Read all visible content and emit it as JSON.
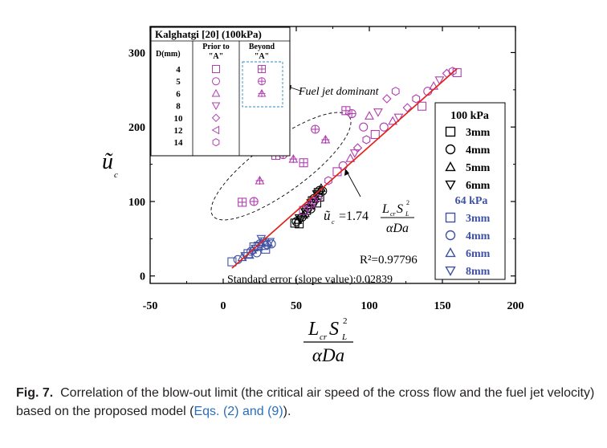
{
  "chart_data": {
    "type": "scatter",
    "x_axis": {
      "ticks": [
        "-50",
        "0",
        "50",
        "100",
        "150",
        "200"
      ],
      "range": [
        -50,
        200
      ],
      "label_main": "L",
      "label_sub1": "cr",
      "label_s": "S",
      "label_sub2": "L",
      "label_sup": "2",
      "label_den": "αDa"
    },
    "y_axis": {
      "ticks": [
        "0",
        "100",
        "200",
        "300"
      ],
      "range": [
        -10,
        335
      ],
      "label": "ũ",
      "label_sub": "c"
    },
    "grid": false,
    "inset_table": {
      "title": "Kalghatgi [20] (100kPa)",
      "col_d": "D(mm)",
      "col_prior_1": "Prior to",
      "col_prior_2": "\"A\"",
      "col_beyond_1": "Beyond",
      "col_beyond_2": "\"A\"",
      "rows": [
        {
          "d": "4",
          "prior": "square",
          "beyond": "square-plus"
        },
        {
          "d": "5",
          "prior": "circle",
          "beyond": "circle-plus"
        },
        {
          "d": "6",
          "prior": "triangle-up",
          "beyond": "triangle-plus"
        },
        {
          "d": "8",
          "prior": "triangle-down",
          "beyond": ""
        },
        {
          "d": "10",
          "prior": "diamond",
          "beyond": ""
        },
        {
          "d": "12",
          "prior": "triangle-left",
          "beyond": ""
        },
        {
          "d": "14",
          "prior": "hexagon",
          "beyond": ""
        }
      ]
    },
    "legend": {
      "placement": "right",
      "group1_title": "100 kPa",
      "group1": [
        {
          "label": "3mm",
          "marker": "square"
        },
        {
          "label": "4mm",
          "marker": "circle"
        },
        {
          "label": "5mm",
          "marker": "triangle-up"
        },
        {
          "label": "6mm",
          "marker": "triangle-down"
        }
      ],
      "group2_title": "64 kPa",
      "group2": [
        {
          "label": "3mm",
          "marker": "square"
        },
        {
          "label": "4mm",
          "marker": "circle"
        },
        {
          "label": "6mm",
          "marker": "triangle-up"
        },
        {
          "label": "8mm",
          "marker": "triangle-down"
        }
      ]
    },
    "annotations": {
      "fuel_jet": "Fuel jet dominant",
      "eq_lhs": "ũ",
      "eq_lhs_sub": "c",
      "eq_mid": "=1.74",
      "eq_num": "L",
      "eq_num_sub": "cr",
      "eq_num_s": "S",
      "eq_num_sub2": "L",
      "eq_num_sup": "2",
      "eq_den": "αDa",
      "r2": "R²=0.97796",
      "std_error": "Standard error (slope value):0.02839"
    },
    "fit_line": {
      "slope": 1.74,
      "x": [
        6,
        160
      ]
    },
    "colors": {
      "black": "#000000",
      "blue": "#3f51a5",
      "magenta": "#b03fb0",
      "fit": "#e2231a"
    },
    "series": [
      {
        "name": "100 kPa",
        "color": "black",
        "points": [
          [
            49,
            71
          ],
          [
            50,
            73
          ],
          [
            51,
            75
          ],
          [
            52,
            78
          ],
          [
            52,
            70
          ],
          [
            54,
            79
          ],
          [
            55,
            82
          ],
          [
            56,
            86
          ],
          [
            57,
            88
          ],
          [
            58,
            91
          ],
          [
            59,
            95
          ],
          [
            60,
            98
          ],
          [
            61,
            101
          ],
          [
            62,
            104
          ],
          [
            63,
            107
          ],
          [
            64,
            110
          ],
          [
            65,
            112
          ],
          [
            66,
            115
          ],
          [
            67,
            118
          ],
          [
            62,
            95
          ],
          [
            64,
            98
          ],
          [
            60,
            90
          ],
          [
            56,
            84
          ],
          [
            53,
            76
          ],
          [
            66,
            106
          ],
          [
            68,
            114
          ]
        ]
      },
      {
        "name": "64 kPa",
        "color": "blue",
        "points": [
          [
            6,
            19
          ],
          [
            10,
            22
          ],
          [
            13,
            25
          ],
          [
            15,
            27
          ],
          [
            17,
            30
          ],
          [
            19,
            33
          ],
          [
            20,
            35
          ],
          [
            22,
            37
          ],
          [
            24,
            40
          ],
          [
            25,
            43
          ],
          [
            26,
            45
          ],
          [
            27,
            47
          ],
          [
            28,
            41
          ],
          [
            30,
            42
          ],
          [
            31,
            44
          ],
          [
            32,
            46
          ],
          [
            29,
            36
          ],
          [
            23,
            31
          ],
          [
            18,
            28
          ],
          [
            26,
            50
          ],
          [
            21,
            39
          ],
          [
            33,
            43
          ]
        ]
      },
      {
        "name": "Prior to A",
        "color": "magenta",
        "points": [
          [
            55,
            88
          ],
          [
            58,
            93
          ],
          [
            60,
            97
          ],
          [
            62,
            100
          ],
          [
            65,
            104
          ],
          [
            72,
            128
          ],
          [
            78,
            140
          ],
          [
            82,
            148
          ],
          [
            87,
            158
          ],
          [
            90,
            165
          ],
          [
            92,
            172
          ],
          [
            98,
            183
          ],
          [
            104,
            190
          ],
          [
            110,
            200
          ],
          [
            116,
            208
          ],
          [
            120,
            213
          ],
          [
            126,
            226
          ],
          [
            132,
            238
          ],
          [
            136,
            228
          ],
          [
            140,
            248
          ],
          [
            144,
            255
          ],
          [
            148,
            263
          ],
          [
            153,
            272
          ],
          [
            157,
            275
          ],
          [
            160,
            273
          ],
          [
            96,
            200
          ],
          [
            100,
            215
          ],
          [
            106,
            220
          ],
          [
            112,
            238
          ],
          [
            118,
            248
          ]
        ]
      },
      {
        "name": "Beyond A",
        "color": "magenta",
        "points": [
          [
            13,
            99
          ],
          [
            21,
            100
          ],
          [
            25,
            128
          ],
          [
            36,
            162
          ],
          [
            41,
            163
          ],
          [
            48,
            157
          ],
          [
            55,
            152
          ],
          [
            63,
            197
          ],
          [
            70,
            183
          ],
          [
            84,
            222
          ],
          [
            88,
            218
          ]
        ]
      }
    ]
  },
  "caption": {
    "label": "Fig. 7.",
    "text_1": "Correlation of the blow-out limit (the critical air speed of the cross flow and the fuel jet velocity) based on the proposed model (",
    "ref": "Eqs. (2) and (9)",
    "text_2": ")."
  }
}
